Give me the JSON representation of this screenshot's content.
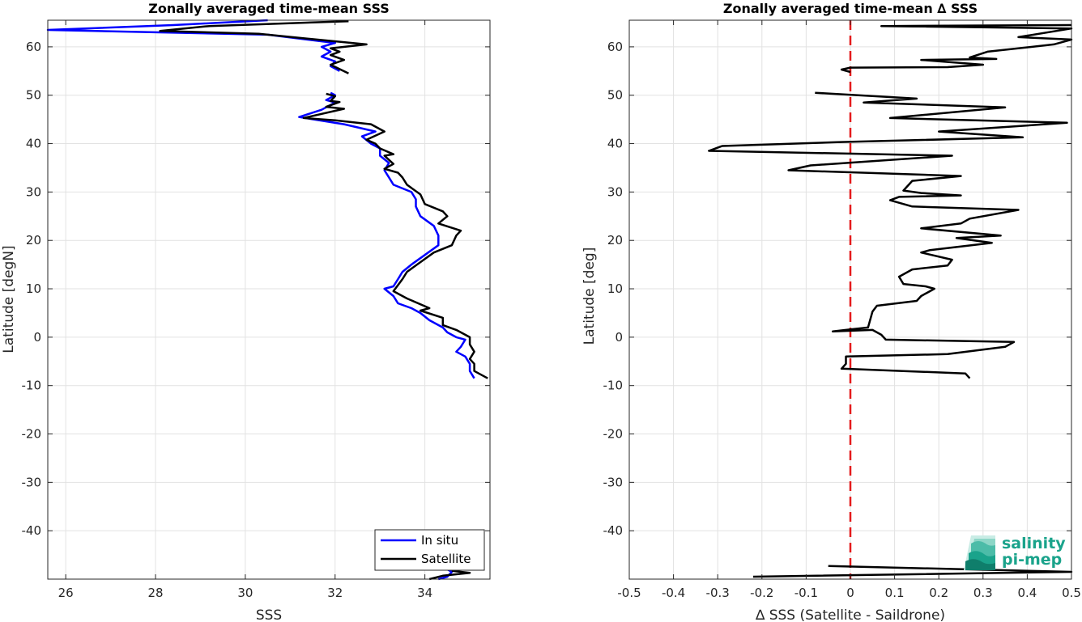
{
  "chart_data": [
    {
      "type": "line",
      "title": "Zonally averaged time-mean SSS",
      "xlabel": "SSS",
      "ylabel": "Latitude [degN]",
      "xlim": [
        25.6,
        35.45
      ],
      "ylim": [
        -50,
        65.5
      ],
      "xticks": [
        26,
        28,
        30,
        32,
        34
      ],
      "yticks": [
        -40,
        -30,
        -20,
        -10,
        0,
        10,
        20,
        30,
        40,
        50,
        60
      ],
      "grid": true,
      "legend_position": "bottom-right",
      "series": [
        {
          "name": "In situ",
          "color": "#0000ff",
          "points": [
            [
              30.5,
              65.5
            ],
            [
              28.4,
              64.5
            ],
            [
              25.6,
              63.5
            ],
            [
              30.5,
              62.5
            ],
            [
              32.0,
              60.8
            ],
            [
              31.7,
              60.0
            ],
            [
              31.9,
              59.0
            ],
            [
              31.7,
              58.0
            ],
            [
              32.0,
              57.0
            ],
            [
              31.9,
              56.0
            ],
            [
              32.1,
              55.0
            ],
            [
              null,
              null
            ],
            [
              31.9,
              50.5
            ],
            [
              32.0,
              50.0
            ],
            [
              31.8,
              49.0
            ],
            [
              32.0,
              48.5
            ],
            [
              31.7,
              47.0
            ],
            [
              31.2,
              45.5
            ],
            [
              32.2,
              44.0
            ],
            [
              32.9,
              42.5
            ],
            [
              32.6,
              41.5
            ],
            [
              32.8,
              40.0
            ],
            [
              33.0,
              39.0
            ],
            [
              33.0,
              37.5
            ],
            [
              33.2,
              36.0
            ],
            [
              33.1,
              34.5
            ],
            [
              33.2,
              33.0
            ],
            [
              33.3,
              31.5
            ],
            [
              33.7,
              30.0
            ],
            [
              33.8,
              28.5
            ],
            [
              33.8,
              27.0
            ],
            [
              33.9,
              25.0
            ],
            [
              34.2,
              23.0
            ],
            [
              34.3,
              21.0
            ],
            [
              34.3,
              19.0
            ],
            [
              34.0,
              17.0
            ],
            [
              33.7,
              15.0
            ],
            [
              33.5,
              13.5
            ],
            [
              33.4,
              12.0
            ],
            [
              33.3,
              10.5
            ],
            [
              33.1,
              10.0
            ],
            [
              33.3,
              8.5
            ],
            [
              33.4,
              7.0
            ],
            [
              33.7,
              6.0
            ],
            [
              33.9,
              5.0
            ],
            [
              34.1,
              3.5
            ],
            [
              34.4,
              2.0
            ],
            [
              34.5,
              1.0
            ],
            [
              34.7,
              0.0
            ],
            [
              34.9,
              -0.5
            ],
            [
              34.8,
              -2.0
            ],
            [
              34.7,
              -3.0
            ],
            [
              34.9,
              -4.0
            ],
            [
              35.0,
              -5.5
            ],
            [
              35.0,
              -7.0
            ],
            [
              35.1,
              -8.5
            ],
            [
              null,
              null
            ],
            [
              34.5,
              -48.0
            ],
            [
              34.6,
              -48.5
            ],
            [
              34.5,
              -49.5
            ],
            [
              34.3,
              -50.0
            ]
          ]
        },
        {
          "name": "Satellite",
          "color": "#000000",
          "points": [
            [
              32.3,
              65.3
            ],
            [
              29.2,
              64.3
            ],
            [
              28.1,
              63.3
            ],
            [
              30.3,
              62.7
            ],
            [
              32.7,
              60.5
            ],
            [
              31.9,
              59.7
            ],
            [
              32.1,
              59.0
            ],
            [
              31.9,
              58.3
            ],
            [
              32.2,
              57.3
            ],
            [
              31.9,
              56.3
            ],
            [
              32.3,
              54.5
            ],
            [
              null,
              null
            ],
            [
              31.8,
              50.3
            ],
            [
              32.0,
              49.8
            ],
            [
              31.9,
              48.8
            ],
            [
              32.1,
              48.6
            ],
            [
              31.8,
              47.6
            ],
            [
              32.2,
              47.2
            ],
            [
              31.3,
              45.3
            ],
            [
              32.0,
              44.8
            ],
            [
              32.8,
              44.0
            ],
            [
              33.1,
              42.5
            ],
            [
              32.7,
              40.8
            ],
            [
              32.9,
              40.0
            ],
            [
              33.0,
              39.0
            ],
            [
              33.3,
              37.8
            ],
            [
              33.1,
              37.5
            ],
            [
              33.3,
              35.8
            ],
            [
              33.1,
              34.8
            ],
            [
              33.4,
              34.0
            ],
            [
              33.5,
              33.0
            ],
            [
              33.6,
              31.5
            ],
            [
              33.9,
              29.5
            ],
            [
              34.0,
              27.5
            ],
            [
              34.4,
              26.0
            ],
            [
              34.5,
              25.0
            ],
            [
              34.3,
              23.5
            ],
            [
              34.8,
              22.0
            ],
            [
              34.7,
              21.0
            ],
            [
              34.6,
              19.0
            ],
            [
              34.2,
              17.5
            ],
            [
              33.9,
              15.5
            ],
            [
              33.6,
              13.5
            ],
            [
              33.5,
              12.0
            ],
            [
              33.3,
              9.5
            ],
            [
              33.6,
              8.0
            ],
            [
              34.1,
              6.0
            ],
            [
              33.9,
              5.5
            ],
            [
              34.4,
              4.0
            ],
            [
              34.4,
              2.5
            ],
            [
              34.7,
              1.5
            ],
            [
              35.0,
              0.0
            ],
            [
              35.0,
              -1.5
            ],
            [
              35.1,
              -3.0
            ],
            [
              35.0,
              -4.5
            ],
            [
              35.1,
              -5.5
            ],
            [
              35.1,
              -7.0
            ],
            [
              35.4,
              -8.5
            ],
            [
              null,
              null
            ],
            [
              34.6,
              -48.3
            ],
            [
              35.0,
              -48.7
            ],
            [
              34.4,
              -49.3
            ],
            [
              34.1,
              -50.0
            ]
          ]
        }
      ]
    },
    {
      "type": "line",
      "title": "Zonally averaged time-mean ∆ SSS",
      "xlabel": "∆ SSS (Satellite - Saildrone)",
      "ylabel": "Latitude [deg]",
      "xlim": [
        -0.5,
        0.5
      ],
      "ylim": [
        -50,
        65.5
      ],
      "xticks": [
        -0.5,
        -0.4,
        -0.3,
        -0.2,
        -0.1,
        0,
        0.1,
        0.2,
        0.3,
        0.4,
        0.5
      ],
      "yticks": [
        -40,
        -30,
        -20,
        -10,
        0,
        10,
        20,
        30,
        40,
        50,
        60
      ],
      "grid": true,
      "reference_line": {
        "x": 0,
        "color": "#e41a1c",
        "style": "dashed"
      },
      "series": [
        {
          "name": "",
          "color": "#000000",
          "points": [
            [
              0.5,
              64.5
            ],
            [
              0.07,
              64.3
            ],
            [
              0.5,
              63.8
            ],
            [
              0.38,
              62.0
            ],
            [
              0.5,
              61.5
            ],
            [
              0.46,
              60.5
            ],
            [
              0.31,
              59.0
            ],
            [
              0.27,
              57.8
            ],
            [
              0.33,
              57.5
            ],
            [
              0.16,
              57.3
            ],
            [
              0.3,
              56.3
            ],
            [
              0.22,
              55.8
            ],
            [
              0.0,
              55.7
            ],
            [
              -0.02,
              55.3
            ],
            [
              0.0,
              54.8
            ],
            [
              null,
              null
            ],
            [
              -0.08,
              50.5
            ],
            [
              0.15,
              49.3
            ],
            [
              0.03,
              48.5
            ],
            [
              0.35,
              47.5
            ],
            [
              0.09,
              45.3
            ],
            [
              0.49,
              44.3
            ],
            [
              0.2,
              42.5
            ],
            [
              0.39,
              41.3
            ],
            [
              -0.03,
              40.3
            ],
            [
              -0.29,
              39.5
            ],
            [
              -0.32,
              38.5
            ],
            [
              0.23,
              37.5
            ],
            [
              -0.09,
              35.5
            ],
            [
              -0.14,
              34.5
            ],
            [
              0.25,
              33.3
            ],
            [
              0.14,
              32.3
            ],
            [
              0.12,
              30.3
            ],
            [
              0.16,
              29.8
            ],
            [
              0.25,
              29.3
            ],
            [
              0.11,
              29.0
            ],
            [
              0.09,
              28.3
            ],
            [
              0.14,
              27.0
            ],
            [
              0.38,
              26.3
            ],
            [
              0.27,
              24.5
            ],
            [
              0.25,
              23.5
            ],
            [
              0.16,
              22.5
            ],
            [
              0.34,
              21.0
            ],
            [
              0.24,
              20.5
            ],
            [
              0.32,
              19.5
            ],
            [
              0.18,
              18.0
            ],
            [
              0.16,
              17.5
            ],
            [
              0.23,
              16.0
            ],
            [
              0.22,
              14.8
            ],
            [
              0.14,
              14.0
            ],
            [
              0.11,
              12.5
            ],
            [
              0.12,
              11.0
            ],
            [
              0.17,
              10.5
            ],
            [
              0.19,
              10.0
            ],
            [
              0.16,
              8.5
            ],
            [
              0.15,
              7.5
            ],
            [
              0.06,
              6.5
            ],
            [
              0.05,
              5.3
            ],
            [
              0.04,
              2.0
            ],
            [
              -0.01,
              1.5
            ],
            [
              -0.04,
              1.2
            ],
            [
              0.05,
              1.5
            ],
            [
              0.07,
              0.5
            ],
            [
              0.08,
              -0.5
            ],
            [
              0.37,
              -1.0
            ],
            [
              0.35,
              -2.0
            ],
            [
              0.22,
              -3.5
            ],
            [
              -0.01,
              -4.0
            ],
            [
              -0.01,
              -5.5
            ],
            [
              -0.02,
              -6.5
            ],
            [
              0.26,
              -7.5
            ],
            [
              0.27,
              -8.5
            ],
            [
              null,
              null
            ],
            [
              -0.05,
              -47.3
            ],
            [
              0.5,
              -48.5
            ],
            [
              -0.22,
              -49.5
            ]
          ]
        }
      ]
    }
  ],
  "legend": {
    "items": [
      {
        "label": "In situ",
        "color": "#0000ff"
      },
      {
        "label": "Satellite",
        "color": "#000000"
      }
    ]
  },
  "logo": {
    "line1": "salinity",
    "line2": "pi-mep",
    "color": "#1aa38b"
  }
}
